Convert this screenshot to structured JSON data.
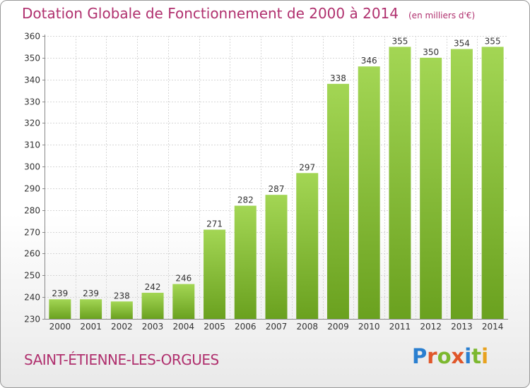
{
  "title": "Dotation Globale de Fonctionnement de 2000 à 2014",
  "unit": "(en milliers d'€)",
  "commune": "SAINT-ÉTIENNE-LES-ORGUES",
  "logo": {
    "letters": [
      "P",
      "r",
      "o",
      "x",
      "i",
      "t",
      "i"
    ],
    "colors": [
      "#2a7fd0",
      "#e0572a",
      "#7cb82f",
      "#e0572a",
      "#2a7fd0",
      "#7cb82f",
      "#e8a21f"
    ]
  },
  "colors": {
    "bar_top": "#a3d654",
    "bar_bottom": "#6aa11f",
    "grid": "#d6d6d6",
    "accent": "#b0306e"
  },
  "chart_data": {
    "type": "bar",
    "categories": [
      "2000",
      "2001",
      "2002",
      "2003",
      "2004",
      "2005",
      "2006",
      "2007",
      "2008",
      "2009",
      "2010",
      "2011",
      "2012",
      "2013",
      "2014"
    ],
    "values": [
      239,
      239,
      238,
      242,
      246,
      271,
      282,
      287,
      297,
      338,
      346,
      355,
      350,
      354,
      355
    ],
    "data_labels": [
      "239",
      "239",
      "238",
      "242",
      "246",
      "271",
      "282",
      "287",
      "297",
      "338",
      "346",
      "355",
      "350",
      "354",
      "355"
    ],
    "yticks": [
      230,
      240,
      250,
      260,
      270,
      280,
      290,
      300,
      310,
      320,
      330,
      340,
      350,
      360
    ],
    "ylim": [
      230,
      360
    ],
    "grid": true,
    "legend": "none",
    "title": "Dotation Globale de Fonctionnement de 2000 à 2014",
    "subtitle": "(en milliers d'€)",
    "xlabel": "",
    "ylabel": ""
  }
}
